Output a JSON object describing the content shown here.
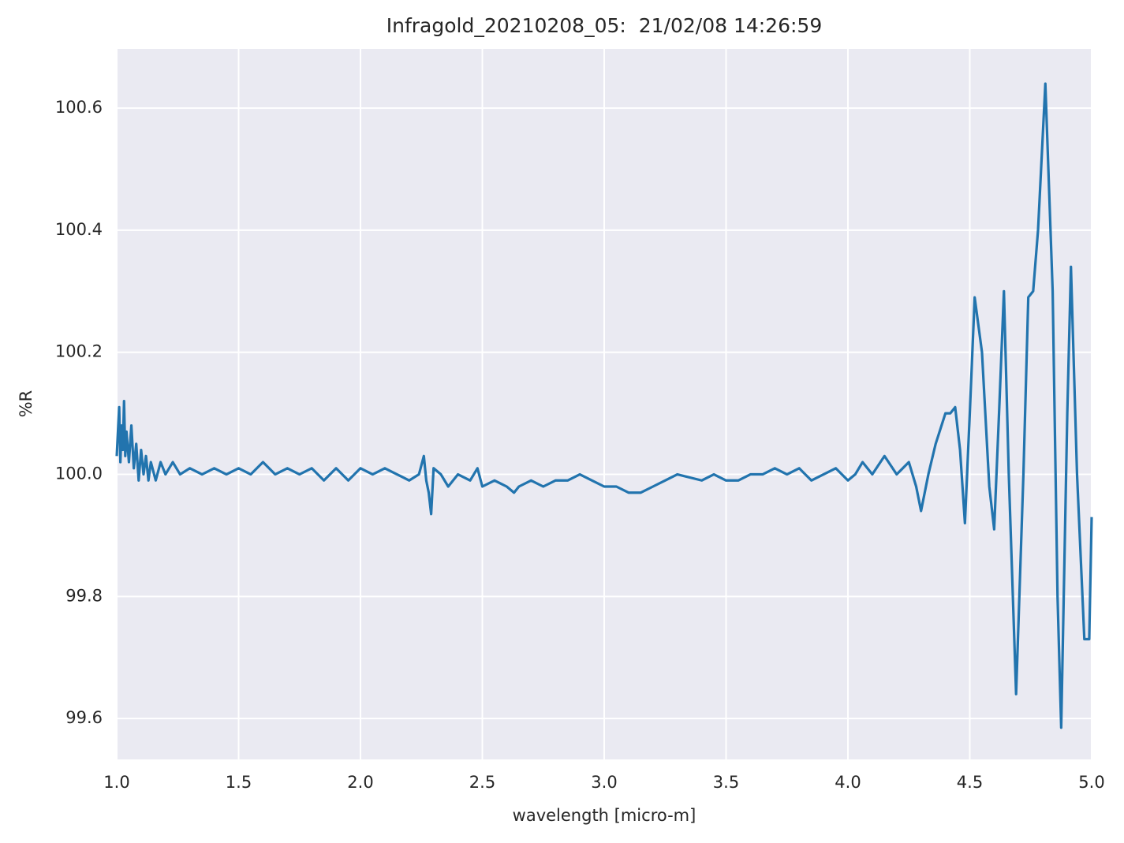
{
  "chart_data": {
    "type": "line",
    "title": "Infragold_20210208_05:  21/02/08 14:26:59",
    "x_label": "wavelength [micro-m]",
    "y_label": "%R",
    "color": "#2274ae",
    "grid": true,
    "xlim": [
      1.0,
      5.0
    ],
    "ylim": [
      99.533,
      100.697
    ],
    "xticks": [
      {
        "value": 1,
        "label": "1.0"
      },
      1.5,
      {
        "value": 2,
        "label": "2.0"
      },
      2.5,
      {
        "value": 3,
        "label": "3.0"
      },
      3.5,
      {
        "value": 4,
        "label": "4.0"
      },
      4.5,
      {
        "value": 5,
        "label": "5.0"
      }
    ],
    "yticks": [
      99.6,
      99.8,
      {
        "value": 100,
        "label": "100.0"
      },
      100.2,
      100.4,
      100.6
    ],
    "x": [
      1.0,
      1.01,
      1.015,
      1.02,
      1.025,
      1.03,
      1.035,
      1.04,
      1.05,
      1.06,
      1.07,
      1.08,
      1.09,
      1.1,
      1.11,
      1.12,
      1.13,
      1.14,
      1.16,
      1.18,
      1.2,
      1.23,
      1.26,
      1.3,
      1.35,
      1.4,
      1.45,
      1.5,
      1.55,
      1.6,
      1.65,
      1.7,
      1.75,
      1.8,
      1.85,
      1.9,
      1.95,
      2.0,
      2.05,
      2.1,
      2.15,
      2.2,
      2.24,
      2.26,
      2.27,
      2.28,
      2.29,
      2.3,
      2.33,
      2.36,
      2.4,
      2.45,
      2.48,
      2.5,
      2.55,
      2.6,
      2.63,
      2.65,
      2.7,
      2.75,
      2.8,
      2.85,
      2.9,
      2.95,
      3.0,
      3.05,
      3.1,
      3.15,
      3.2,
      3.25,
      3.3,
      3.4,
      3.45,
      3.5,
      3.55,
      3.6,
      3.65,
      3.7,
      3.75,
      3.8,
      3.85,
      3.9,
      3.95,
      4.0,
      4.03,
      4.06,
      4.1,
      4.15,
      4.2,
      4.25,
      4.28,
      4.3,
      4.33,
      4.36,
      4.4,
      4.42,
      4.44,
      4.46,
      4.48,
      4.5,
      4.52,
      4.55,
      4.58,
      4.6,
      4.62,
      4.64,
      4.66,
      4.69,
      4.72,
      4.74,
      4.76,
      4.78,
      4.81,
      4.84,
      4.86,
      4.875,
      4.9,
      4.915,
      4.94,
      4.97,
      4.99,
      5.0
    ],
    "values": [
      100.03,
      100.11,
      100.02,
      100.08,
      100.04,
      100.12,
      100.03,
      100.07,
      100.02,
      100.08,
      100.01,
      100.05,
      99.99,
      100.04,
      100.0,
      100.03,
      99.99,
      100.02,
      99.99,
      100.02,
      100.0,
      100.02,
      100.0,
      100.01,
      100.0,
      100.01,
      100.0,
      100.01,
      100.0,
      100.02,
      100.0,
      100.01,
      100.0,
      100.01,
      99.99,
      100.01,
      99.99,
      100.01,
      100.0,
      100.01,
      100.0,
      99.99,
      100.0,
      100.03,
      99.99,
      99.97,
      99.935,
      100.01,
      100.0,
      99.98,
      100.0,
      99.99,
      100.01,
      99.98,
      99.99,
      99.98,
      99.97,
      99.98,
      99.99,
      99.98,
      99.99,
      99.99,
      100.0,
      99.99,
      99.98,
      99.98,
      99.97,
      99.97,
      99.98,
      99.99,
      100.0,
      99.99,
      100.0,
      99.99,
      99.99,
      100.0,
      100.0,
      100.01,
      100.0,
      100.01,
      99.99,
      100.0,
      100.01,
      99.99,
      100.0,
      100.02,
      100.0,
      100.03,
      100.0,
      100.02,
      99.98,
      99.94,
      100.0,
      100.05,
      100.1,
      100.1,
      100.11,
      100.04,
      99.92,
      100.1,
      100.29,
      100.2,
      99.98,
      99.91,
      100.1,
      100.3,
      100.0,
      99.64,
      100.0,
      100.29,
      100.3,
      100.4,
      100.64,
      100.3,
      99.8,
      99.585,
      100.1,
      100.34,
      100.0,
      99.73,
      99.73,
      99.93
    ]
  }
}
